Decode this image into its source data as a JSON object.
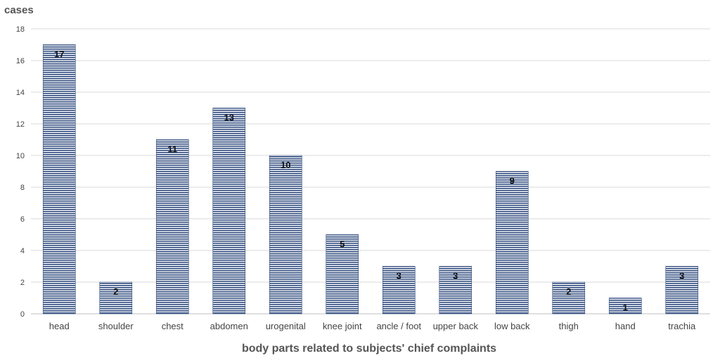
{
  "chart_data": {
    "type": "bar",
    "title": "",
    "ylabel": "cases",
    "xlabel": "body parts related to subjects' chief complaints",
    "categories": [
      "head",
      "shoulder",
      "chest",
      "abdomen",
      "urogenital",
      "knee joint",
      "ancle / foot",
      "upper back",
      "low back",
      "thigh",
      "hand",
      "trachia"
    ],
    "values": [
      17,
      2,
      11,
      13,
      10,
      5,
      3,
      3,
      9,
      2,
      1,
      3
    ],
    "ylim": [
      0,
      18
    ],
    "yticks": [
      0,
      2,
      4,
      6,
      8,
      10,
      12,
      14,
      16,
      18
    ],
    "grid": true,
    "legend": "none",
    "bar_color": "#2e4a7d",
    "bar_pattern": "horizontal-stripes"
  }
}
